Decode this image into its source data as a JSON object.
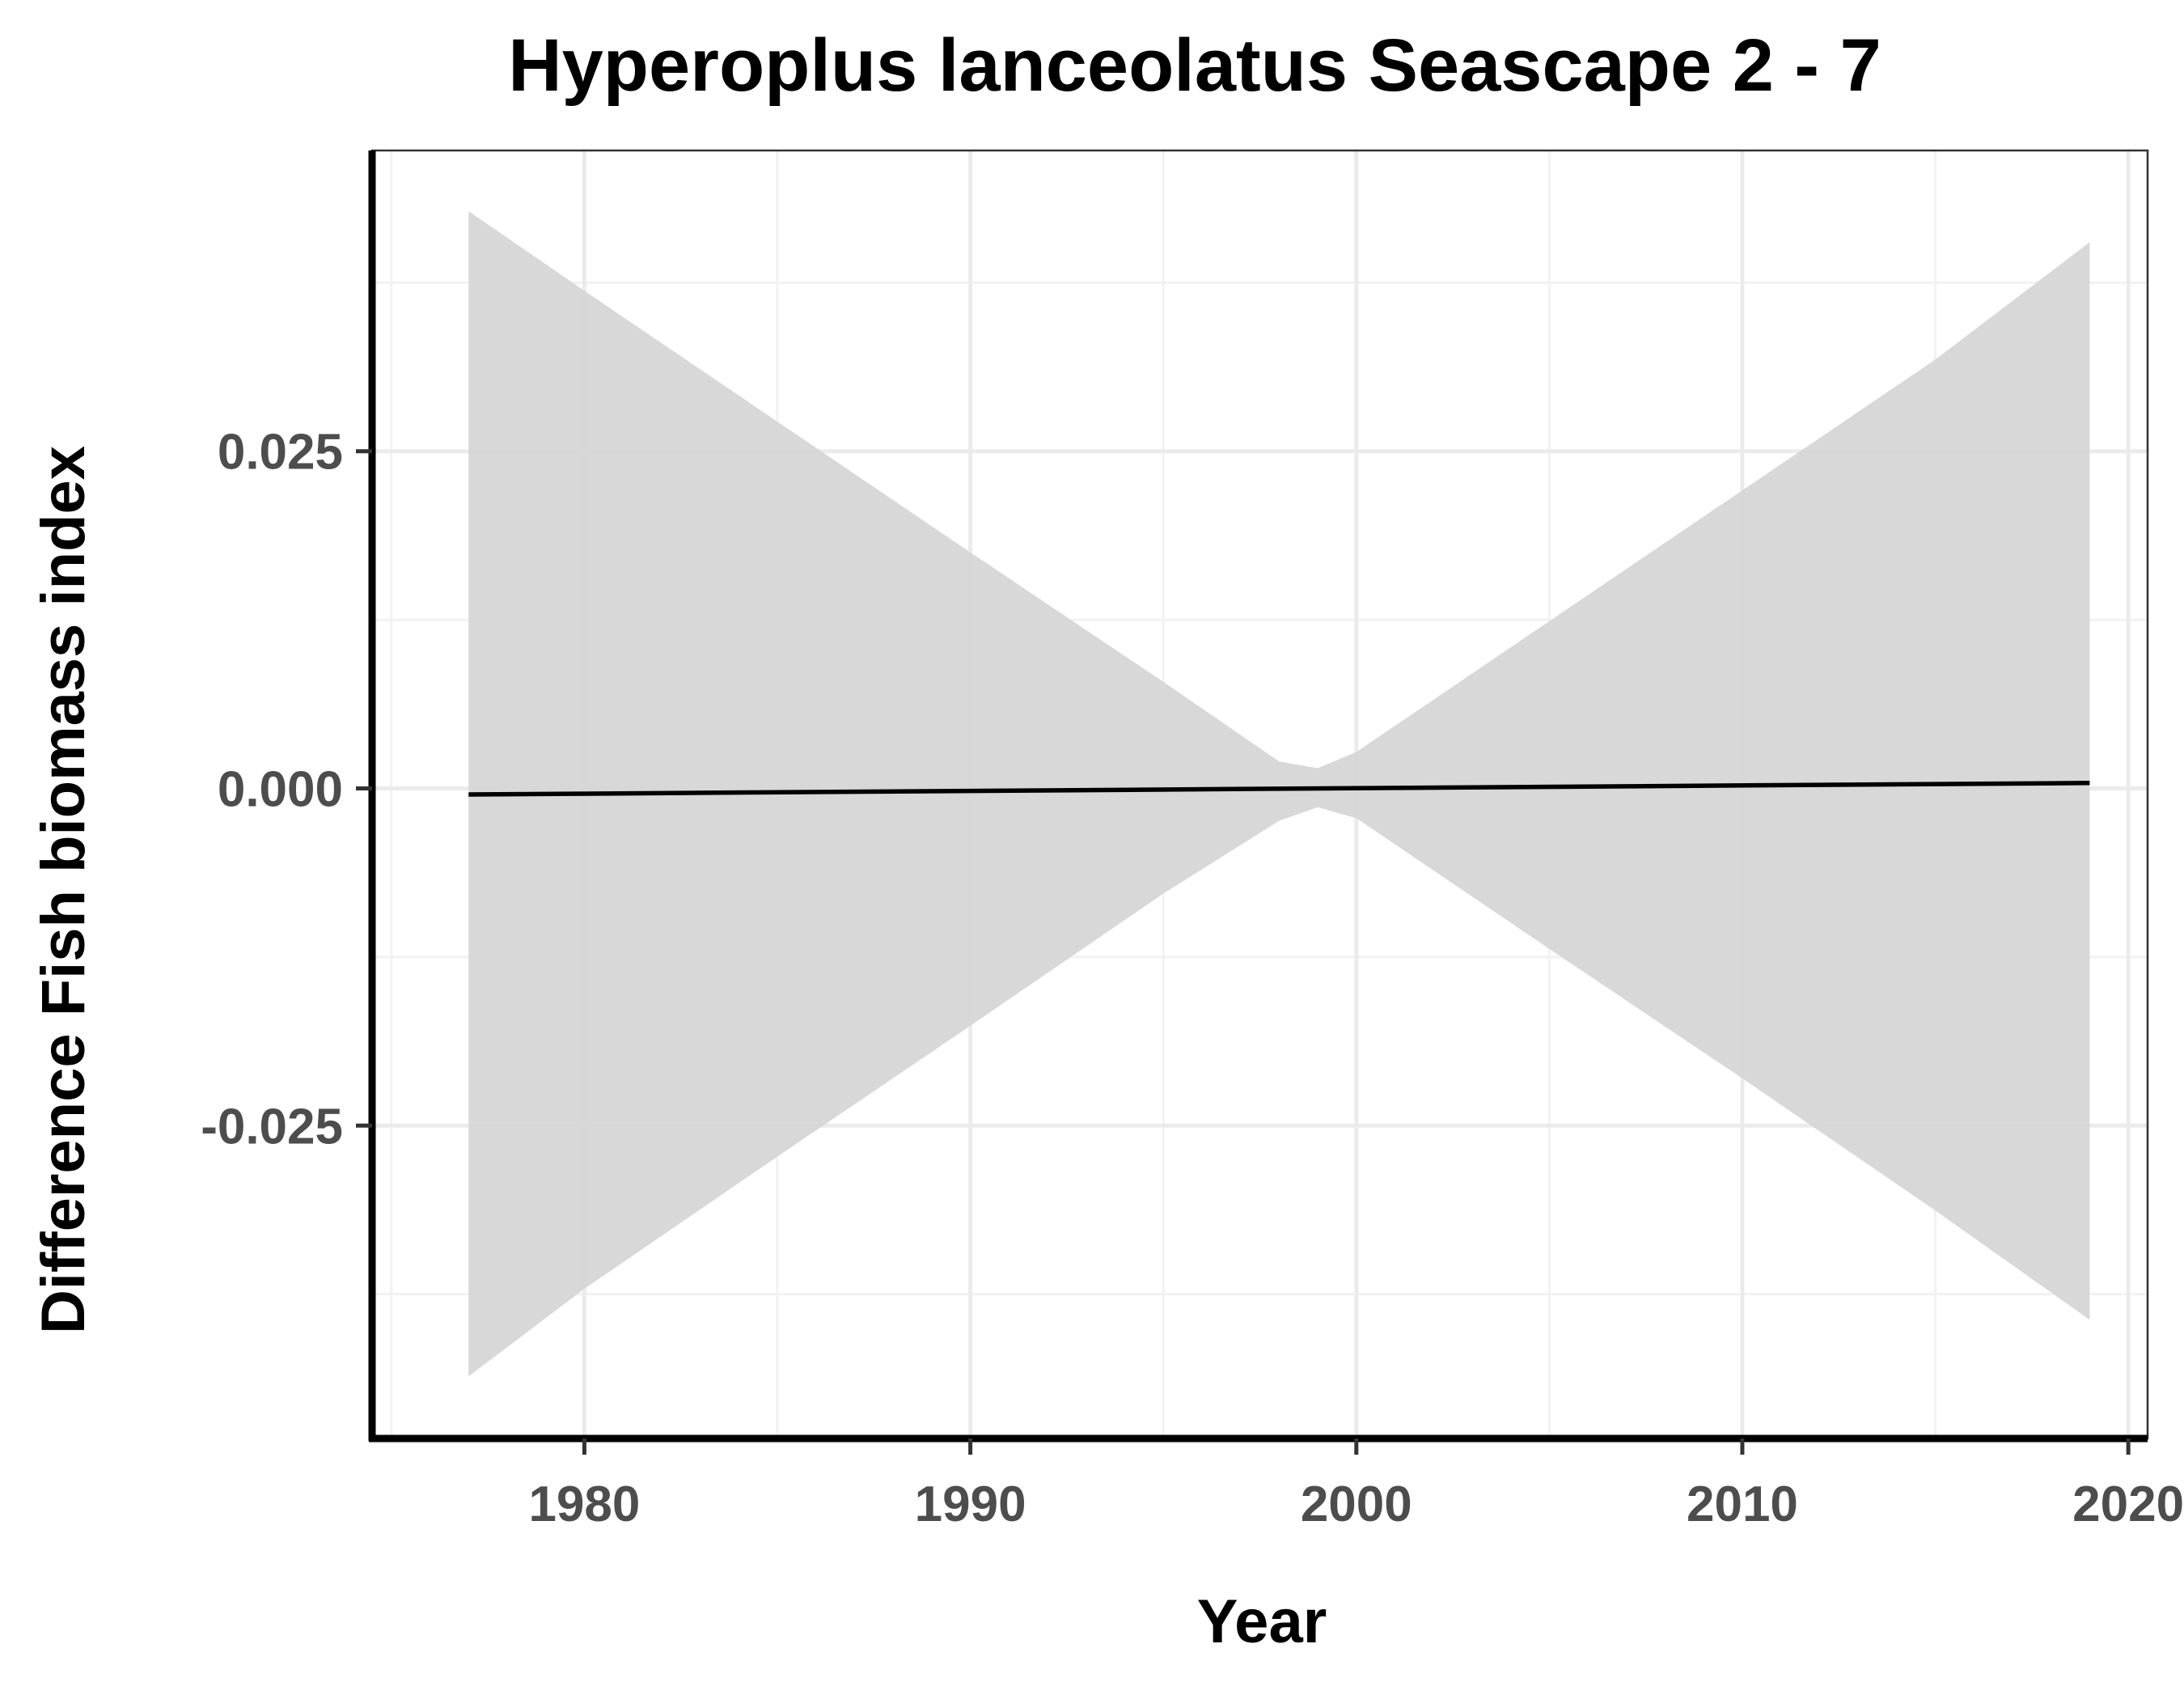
{
  "chart_data": {
    "type": "line",
    "title": "Hyperoplus lanceolatus Seascape 2 - 7",
    "xlabel": "Year",
    "ylabel": "Difference Fish biomass index",
    "xlim": [
      1974.5,
      2020.5
    ],
    "ylim": [
      -0.0482,
      0.0473
    ],
    "x_ticks": [
      1980,
      1990,
      2000,
      2010,
      2020
    ],
    "x_tick_labels": [
      "1980",
      "1990",
      "2000",
      "2010",
      "2020"
    ],
    "y_ticks": [
      -0.025,
      0.0,
      0.025
    ],
    "y_tick_labels": [
      "-0.025",
      "0.000",
      "0.025"
    ],
    "grid": true,
    "legend": "none",
    "series": [
      {
        "x": [
          1977,
          2019
        ],
        "y": [
          -0.00045,
          0.0004
        ]
      }
    ],
    "ribbon": {
      "x": [
        1977,
        1980,
        1985,
        1990,
        1995,
        1998,
        1999,
        2000,
        2005,
        2010,
        2015,
        2019
      ],
      "ymin": [
        -0.0436,
        -0.0371,
        -0.0273,
        -0.0176,
        -0.0078,
        -0.0024,
        -0.0014,
        -0.0022,
        -0.0119,
        -0.0215,
        -0.0313,
        -0.0394
      ],
      "ymax": [
        0.0428,
        0.0369,
        0.0272,
        0.0175,
        0.0079,
        0.002,
        0.0015,
        0.0027,
        0.0124,
        0.0221,
        0.0318,
        0.0405
      ]
    },
    "colors": {
      "line": "#000000",
      "ribbon": "#d6d6d6",
      "grid_major": "#ebebeb",
      "grid_minor": "#f2f2f2",
      "axis": "#000000",
      "background": "#ffffff"
    }
  }
}
